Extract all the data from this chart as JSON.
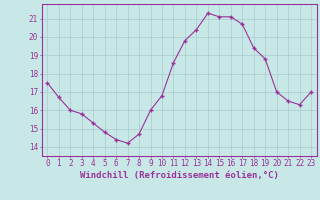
{
  "x": [
    0,
    1,
    2,
    3,
    4,
    5,
    6,
    7,
    8,
    9,
    10,
    11,
    12,
    13,
    14,
    15,
    16,
    17,
    18,
    19,
    20,
    21,
    22,
    23
  ],
  "y": [
    17.5,
    16.7,
    16.0,
    15.8,
    15.3,
    14.8,
    14.4,
    14.2,
    14.7,
    16.0,
    16.8,
    18.6,
    19.8,
    20.4,
    21.3,
    21.1,
    21.1,
    20.7,
    19.4,
    18.8,
    17.0,
    16.5,
    16.3,
    17.0
  ],
  "line_color": "#993399",
  "marker": "+",
  "bg_color": "#c8e8e8",
  "grid_color": "#aacccc",
  "xlabel": "Windchill (Refroidissement éolien,°C)",
  "xlim": [
    -0.5,
    23.5
  ],
  "ylim": [
    13.5,
    21.8
  ],
  "yticks": [
    14,
    15,
    16,
    17,
    18,
    19,
    20,
    21
  ],
  "xticks": [
    0,
    1,
    2,
    3,
    4,
    5,
    6,
    7,
    8,
    9,
    10,
    11,
    12,
    13,
    14,
    15,
    16,
    17,
    18,
    19,
    20,
    21,
    22,
    23
  ],
  "tick_color": "#993399",
  "label_color": "#993399",
  "label_fontsize": 6.5,
  "tick_fontsize": 5.5
}
